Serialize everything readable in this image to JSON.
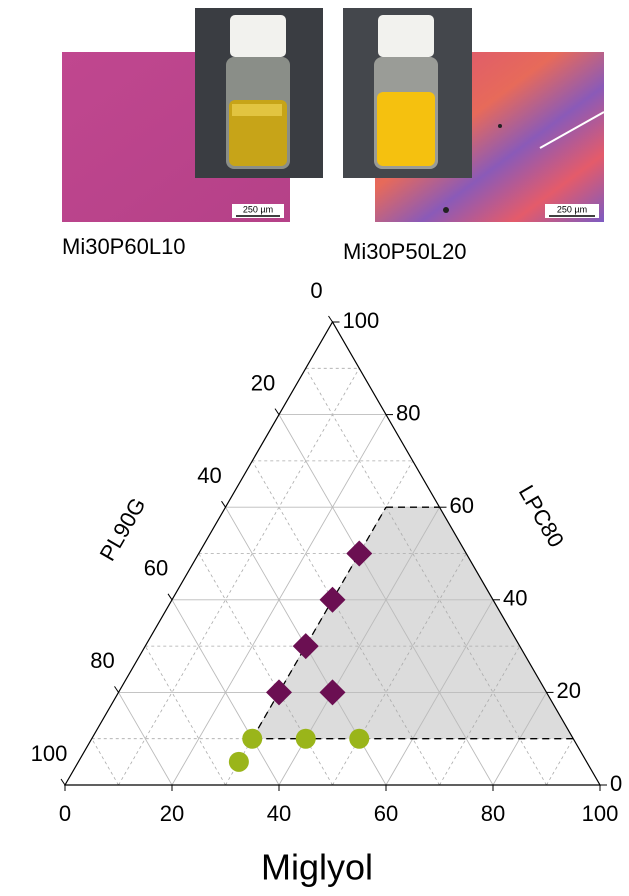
{
  "panels": [
    {
      "caption": "Mi30P60L10",
      "scale_bar": "250 µm"
    },
    {
      "caption": "Mi30P50L20",
      "scale_bar": "250 µm"
    }
  ],
  "chart_data": {
    "type": "ternary",
    "lim": [
      0,
      100
    ],
    "axes": {
      "bottom": {
        "label": "Miglyol",
        "ticks": [
          0,
          20,
          40,
          60,
          80,
          100
        ]
      },
      "right": {
        "label": "LPC80",
        "ticks": [
          0,
          20,
          40,
          60,
          80,
          100
        ]
      },
      "left": {
        "label": "PL90G",
        "ticks": [
          0,
          20,
          40,
          60,
          80,
          100
        ]
      }
    },
    "minor_ticks": [
      10,
      30,
      50,
      70,
      90
    ],
    "grid": true,
    "region": {
      "color": "#dcdcdc",
      "Miglyol": [
        30,
        30,
        40,
        90
      ],
      "LPC80": [
        10,
        60,
        60,
        10
      ],
      "PL90G": [
        60,
        10,
        0,
        0
      ]
    },
    "series": [
      {
        "color": "#9ab51a",
        "marker": "circle",
        "Miglyol": [
          30,
          40,
          50,
          30
        ],
        "LPC80": [
          10,
          10,
          10,
          5
        ],
        "PL90G": [
          60,
          50,
          40,
          65
        ]
      },
      {
        "color": "#6b0f52",
        "marker": "diamond",
        "Miglyol": [
          30,
          40,
          30,
          30,
          30
        ],
        "LPC80": [
          20,
          20,
          30,
          40,
          50
        ],
        "PL90G": [
          50,
          40,
          40,
          30,
          20
        ]
      }
    ]
  }
}
